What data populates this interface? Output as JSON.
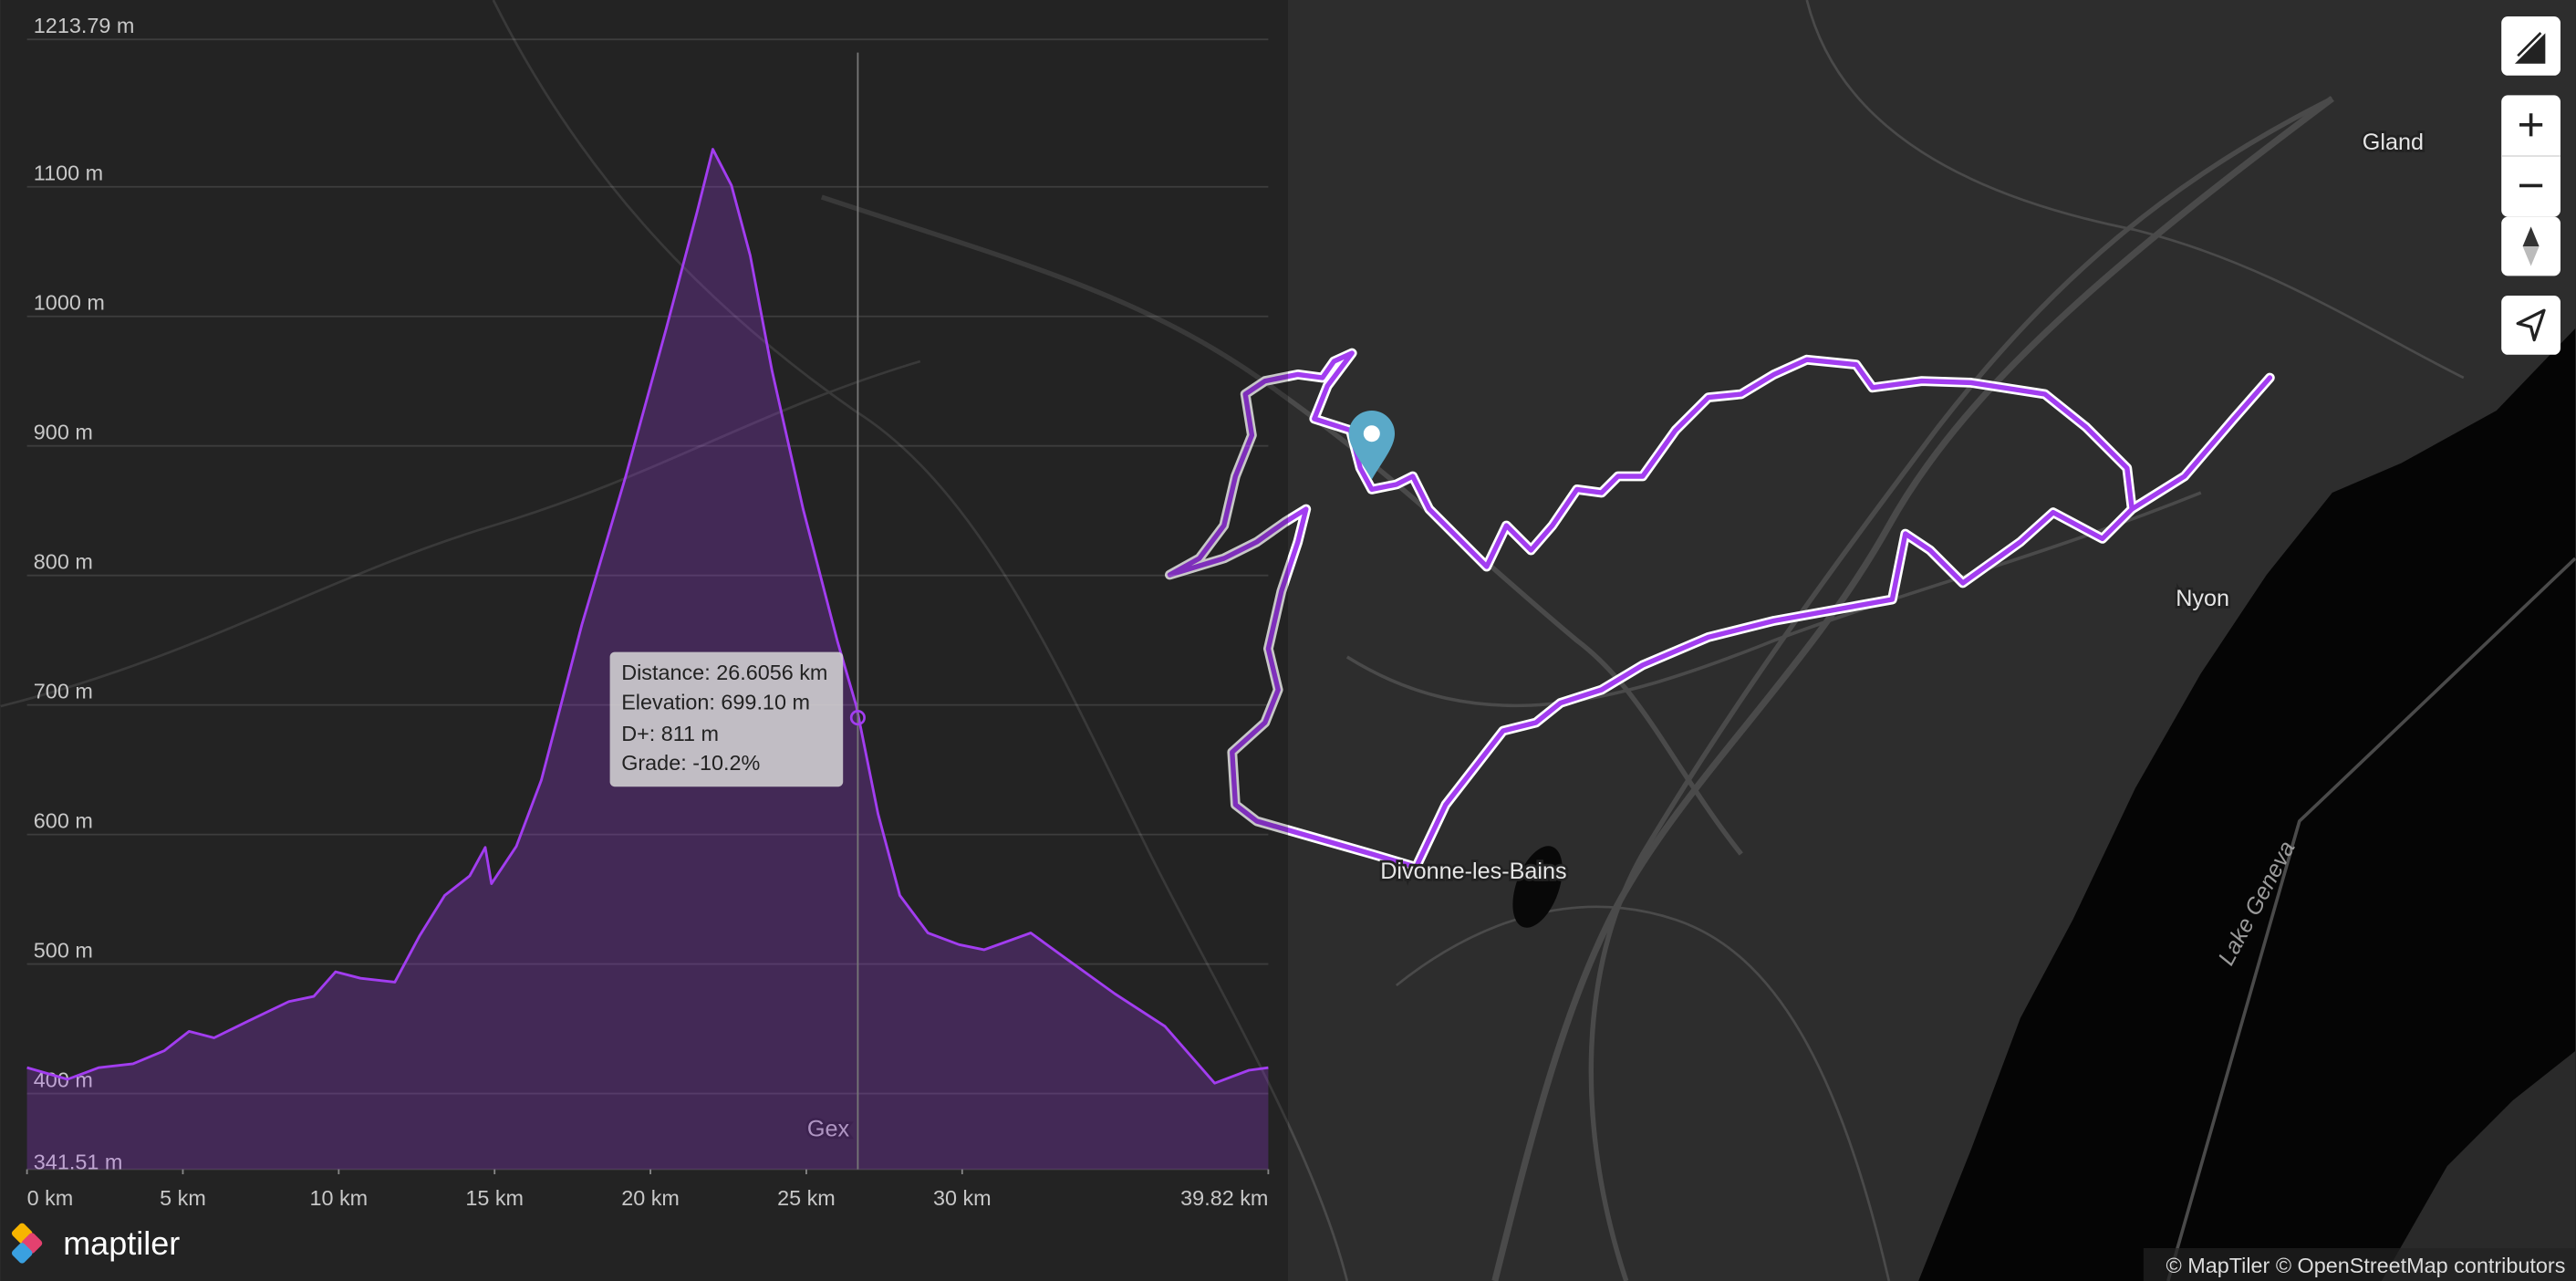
{
  "chart_data": {
    "type": "area",
    "x": [
      0,
      1.3,
      2.3,
      3.4,
      4.4,
      5.2,
      6.0,
      7.1,
      8.4,
      9.2,
      9.9,
      10.7,
      11.8,
      12.6,
      13.4,
      14.2,
      14.7,
      14.9,
      15.7,
      16.5,
      17.8,
      19.2,
      20.5,
      21.5,
      22.0,
      22.6,
      23.2,
      23.9,
      24.9,
      26.0,
      26.6056,
      27.3,
      28.0,
      28.9,
      29.9,
      30.7,
      32.2,
      33.4,
      34.9,
      36.5,
      38.1,
      39.2,
      39.82
    ],
    "values": [
      420,
      411,
      420,
      423,
      433,
      448,
      443,
      456,
      471,
      475,
      494,
      489,
      486,
      522,
      553,
      568,
      590,
      562,
      591,
      642,
      762,
      876,
      990,
      1081,
      1129,
      1101,
      1047,
      958,
      851,
      749,
      699.1,
      616,
      553,
      524,
      515,
      511,
      524,
      503,
      477,
      452,
      408,
      418,
      420
    ],
    "color": "#a23df0",
    "xlim": [
      0,
      39.82
    ],
    "ylim": [
      341.51,
      1213.79
    ],
    "xticks": [
      {
        "value": 0,
        "label": "0 km"
      },
      {
        "value": 5,
        "label": "5 km"
      },
      {
        "value": 10,
        "label": "10 km"
      },
      {
        "value": 15,
        "label": "15 km"
      },
      {
        "value": 20,
        "label": "20 km"
      },
      {
        "value": 25,
        "label": "25 km"
      },
      {
        "value": 30,
        "label": "30 km"
      },
      {
        "value": 39.82,
        "label": "39.82 km"
      }
    ],
    "yticks": [
      {
        "value": 341.51,
        "label": "341.51 m"
      },
      {
        "value": 400,
        "label": "400 m"
      },
      {
        "value": 500,
        "label": "500 m"
      },
      {
        "value": 600,
        "label": "600 m"
      },
      {
        "value": 700,
        "label": "700 m"
      },
      {
        "value": 800,
        "label": "800 m"
      },
      {
        "value": 900,
        "label": "900 m"
      },
      {
        "value": 1000,
        "label": "1000 m"
      },
      {
        "value": 1100,
        "label": "1100 m"
      },
      {
        "value": 1213.79,
        "label": "1213.79 m"
      }
    ],
    "grid": true
  },
  "tooltip": {
    "lines": [
      "Distance: 26.6056 km",
      "Elevation: 699.10 m",
      "D+: 811 m",
      "Grade: -10.2%"
    ]
  },
  "map": {
    "places": [
      "Gland",
      "Nyon",
      "Divonne-les-Bains",
      "Gex"
    ],
    "lake": "Lake Geneva"
  },
  "logo": "maptiler",
  "attribution": "© MapTiler © OpenStreetMap contributors"
}
